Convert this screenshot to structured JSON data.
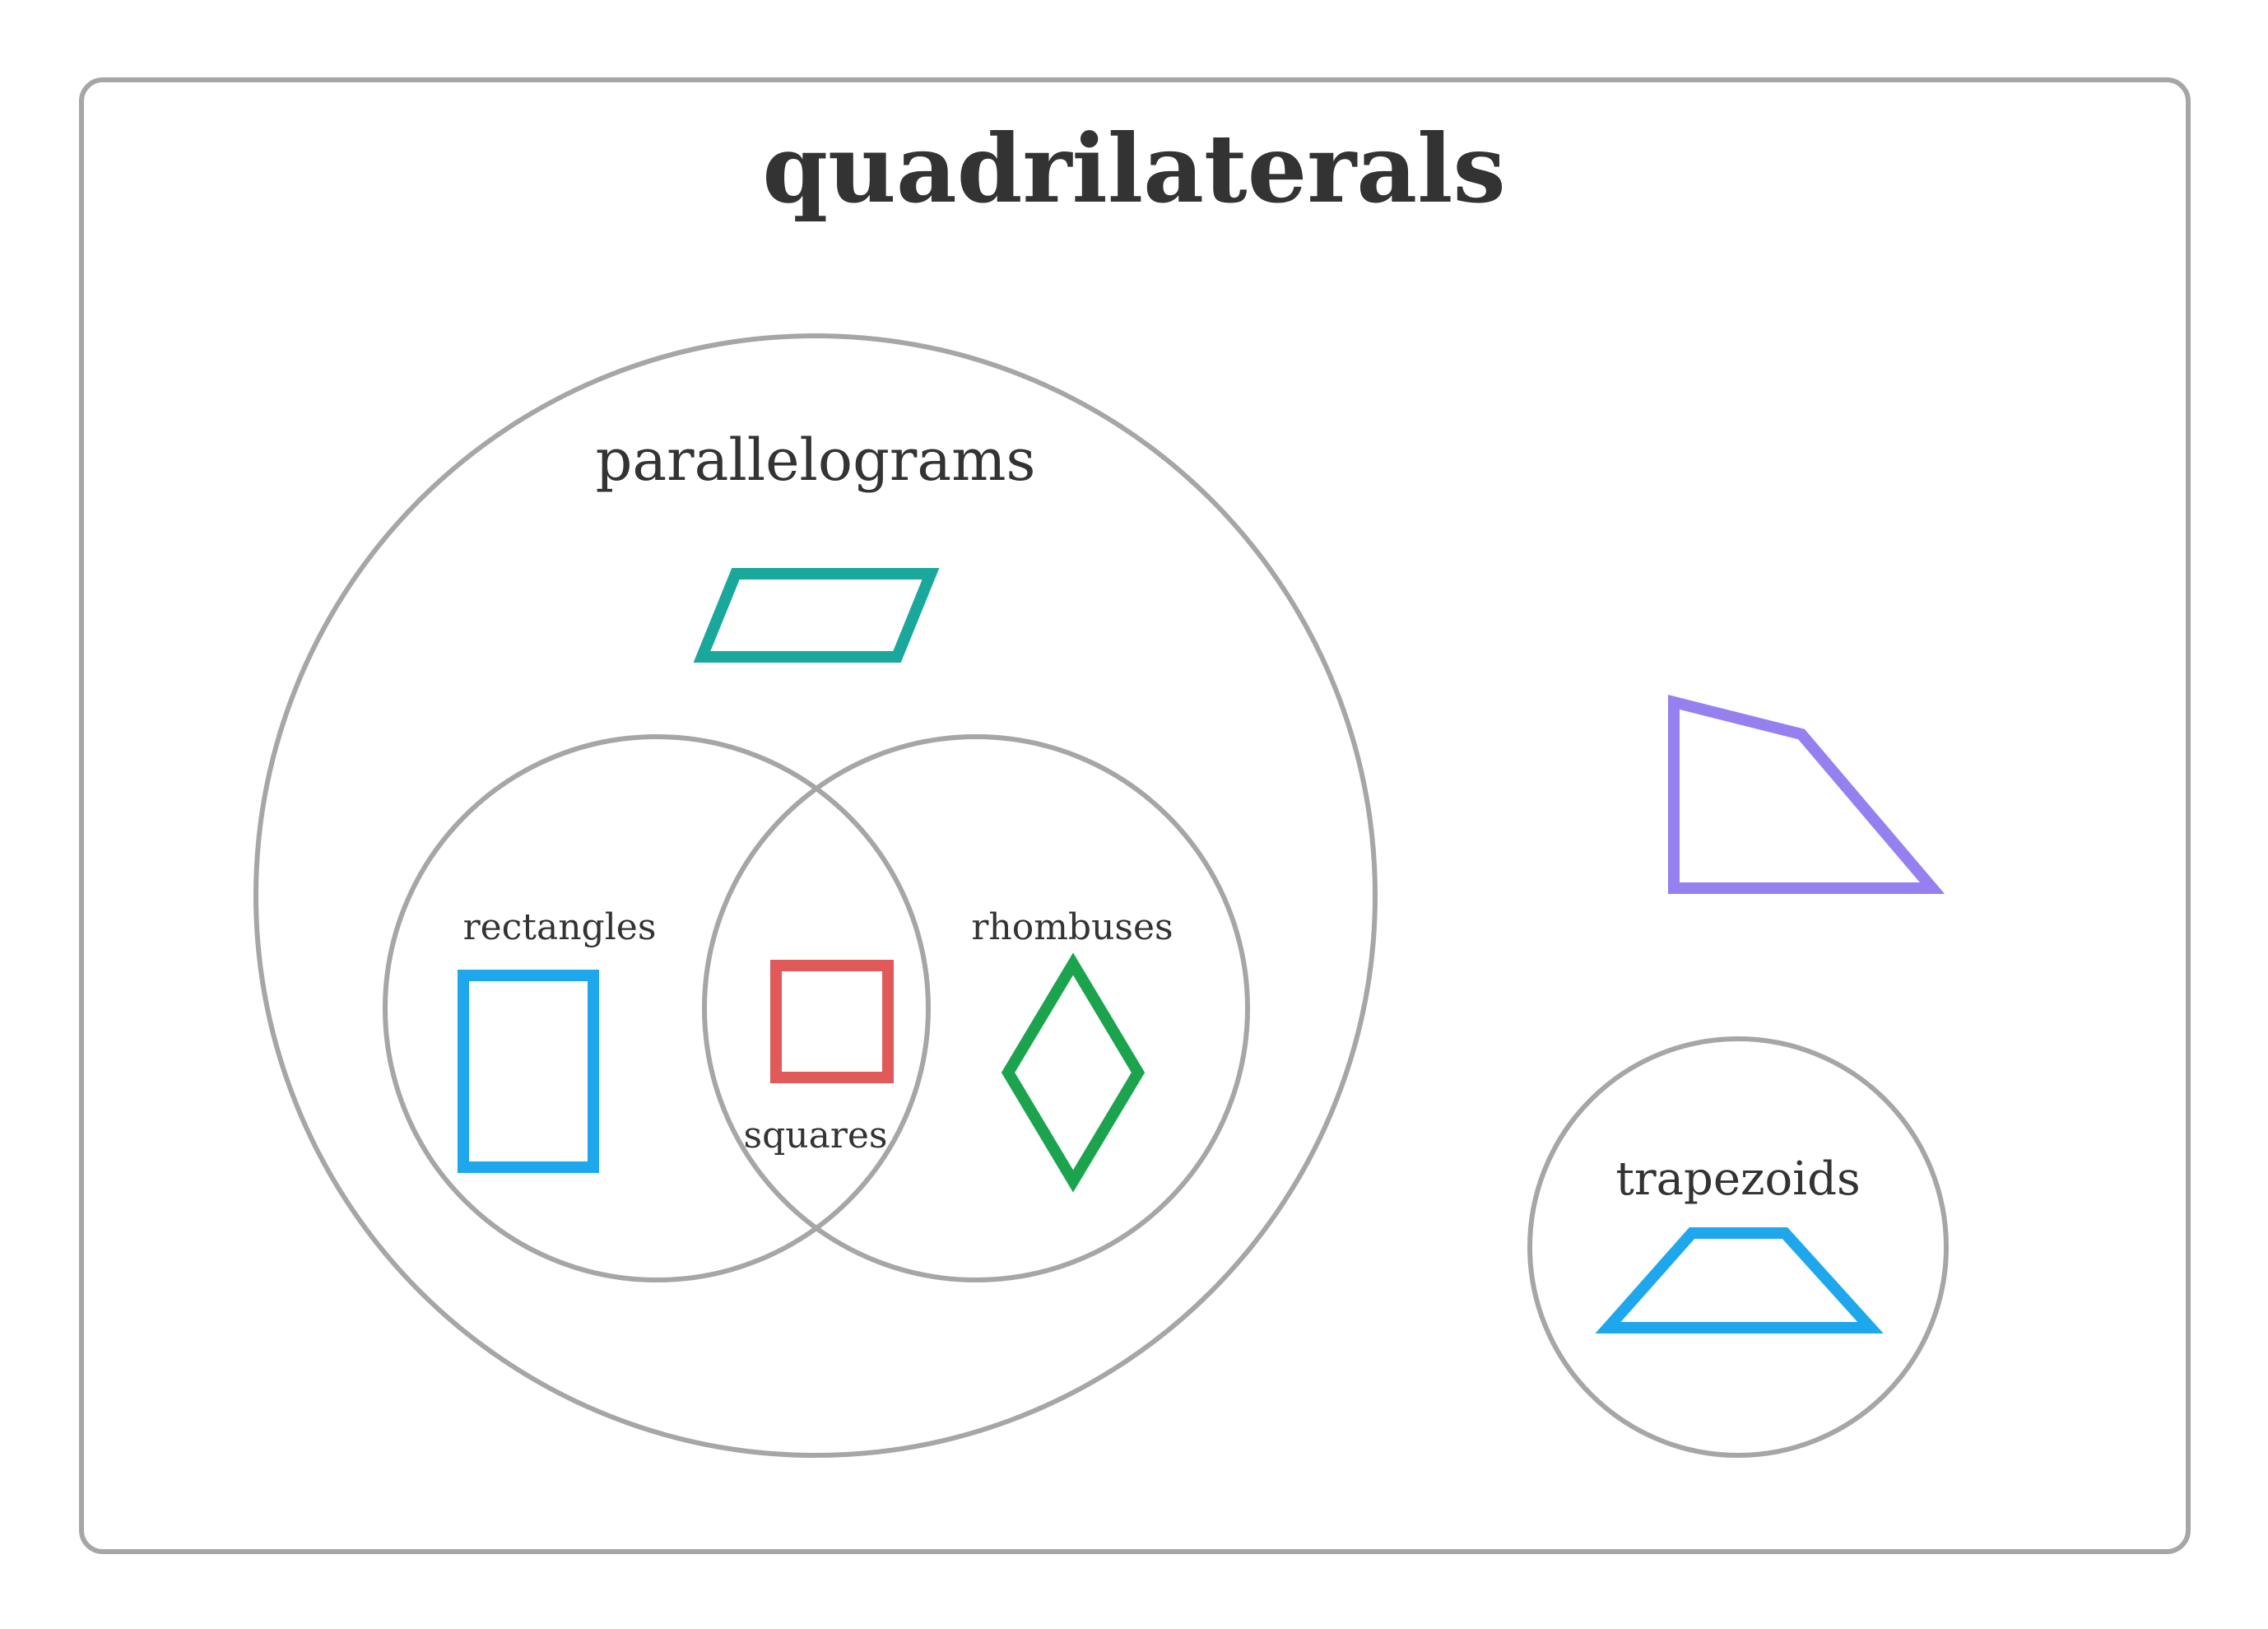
{
  "title": "quadrilaterals",
  "sets": {
    "parallelograms": "parallelograms",
    "rectangles": "rectangles",
    "rhombuses": "rhombuses",
    "squares": "squares",
    "trapezoids": "trapezoids"
  },
  "colors": {
    "frame_stroke": "#a6a6a6",
    "text": "#333333",
    "parallelogram": "#1aa89c",
    "rectangle": "#1fa7ee",
    "square": "#e15959",
    "rhombus": "#1ba44d",
    "trapezoid": "#1fa7ee",
    "general_quadrilateral": "#9680f0"
  },
  "icons": {
    "parallelogram": "parallelogram-icon",
    "rectangle": "rectangle-icon",
    "square": "square-icon",
    "rhombus": "rhombus-icon",
    "trapezoid": "trapezoid-icon",
    "general_quadrilateral": "quadrilateral-icon"
  }
}
